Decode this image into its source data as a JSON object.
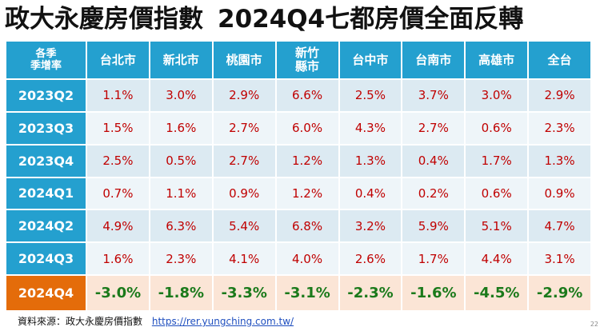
{
  "title": {
    "left": "政大永慶房價指數",
    "right": "2024Q4七都房價全面反轉"
  },
  "table": {
    "corner": [
      "各季",
      "季增率"
    ],
    "columns": [
      [
        "台北市"
      ],
      [
        "新北市"
      ],
      [
        "桃園市"
      ],
      [
        "新竹",
        "縣市"
      ],
      [
        "台中市"
      ],
      [
        "台南市"
      ],
      [
        "高雄市"
      ],
      [
        "全台"
      ]
    ],
    "rows": [
      {
        "label": "2023Q2",
        "values": [
          "1.1%",
          "3.0%",
          "2.9%",
          "6.6%",
          "2.5%",
          "3.7%",
          "3.0%",
          "2.9%"
        ]
      },
      {
        "label": "2023Q3",
        "values": [
          "1.5%",
          "1.6%",
          "2.7%",
          "6.0%",
          "4.3%",
          "2.7%",
          "0.6%",
          "2.3%"
        ]
      },
      {
        "label": "2023Q4",
        "values": [
          "2.5%",
          "0.5%",
          "2.7%",
          "1.2%",
          "1.3%",
          "0.4%",
          "1.7%",
          "1.3%"
        ]
      },
      {
        "label": "2024Q1",
        "values": [
          "0.7%",
          "1.1%",
          "0.9%",
          "1.2%",
          "0.4%",
          "0.2%",
          "0.6%",
          "0.9%"
        ]
      },
      {
        "label": "2024Q2",
        "values": [
          "4.9%",
          "6.3%",
          "5.4%",
          "6.8%",
          "3.2%",
          "5.9%",
          "5.1%",
          "4.7%"
        ]
      },
      {
        "label": "2024Q3",
        "values": [
          "1.6%",
          "2.3%",
          "4.1%",
          "4.0%",
          "2.6%",
          "1.7%",
          "4.4%",
          "3.1%"
        ]
      },
      {
        "label": "2024Q4",
        "values": [
          "-3.0%",
          "-1.8%",
          "-3.3%",
          "-3.1%",
          "-2.3%",
          "-1.6%",
          "-4.5%",
          "-2.9%"
        ]
      }
    ]
  },
  "source": {
    "label": "資料來源：政大永慶房價指數",
    "link": "https://rer.yungching.com.tw/"
  },
  "page_number": "22",
  "colors": {
    "header_bg": "#24a0cf",
    "highlight_row_bg": "#e46c0a",
    "positive_text": "#c00000",
    "negative_text": "#1b7a1b"
  }
}
